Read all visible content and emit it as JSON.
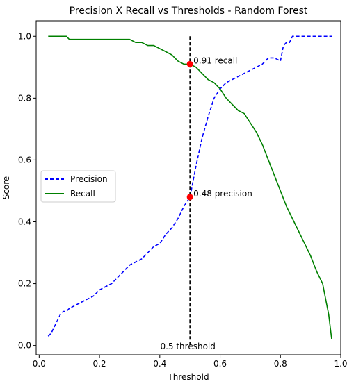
{
  "chart_data": {
    "type": "line",
    "title": "Precision X Recall vs Thresholds - Random Forest",
    "xlabel": "Threshold",
    "ylabel": "Score",
    "xlim": [
      -0.01,
      1.0
    ],
    "ylim": [
      -0.03,
      1.05
    ],
    "xticks": [
      0.0,
      0.2,
      0.4,
      0.6,
      0.8,
      1.0
    ],
    "xtick_labels": [
      "0.0",
      "0.2",
      "0.4",
      "0.6",
      "0.8",
      "1.0"
    ],
    "yticks": [
      0.0,
      0.2,
      0.4,
      0.6,
      0.8,
      1.0
    ],
    "ytick_labels": [
      "0.0",
      "0.2",
      "0.4",
      "0.6",
      "0.8",
      "1.0"
    ],
    "grid": false,
    "legend_position": "center-left",
    "series": [
      {
        "name": "Precision",
        "color": "#0000ff",
        "style": "dashed",
        "x": [
          0.03,
          0.04,
          0.05,
          0.06,
          0.07,
          0.08,
          0.09,
          0.1,
          0.12,
          0.14,
          0.16,
          0.18,
          0.2,
          0.22,
          0.24,
          0.26,
          0.28,
          0.3,
          0.32,
          0.34,
          0.36,
          0.38,
          0.4,
          0.42,
          0.44,
          0.46,
          0.48,
          0.5,
          0.52,
          0.54,
          0.56,
          0.58,
          0.6,
          0.62,
          0.64,
          0.66,
          0.68,
          0.7,
          0.72,
          0.74,
          0.76,
          0.78,
          0.8,
          0.81,
          0.82,
          0.83,
          0.84,
          0.86,
          0.88,
          0.9,
          0.92,
          0.94,
          0.96,
          0.97
        ],
        "y": [
          0.03,
          0.04,
          0.06,
          0.08,
          0.1,
          0.11,
          0.11,
          0.12,
          0.13,
          0.14,
          0.15,
          0.16,
          0.18,
          0.19,
          0.2,
          0.22,
          0.24,
          0.26,
          0.27,
          0.28,
          0.3,
          0.32,
          0.33,
          0.36,
          0.38,
          0.41,
          0.45,
          0.48,
          0.58,
          0.67,
          0.74,
          0.8,
          0.83,
          0.85,
          0.86,
          0.87,
          0.88,
          0.89,
          0.9,
          0.91,
          0.93,
          0.93,
          0.92,
          0.97,
          0.98,
          0.98,
          1.0,
          1.0,
          1.0,
          1.0,
          1.0,
          1.0,
          1.0,
          1.0
        ]
      },
      {
        "name": "Recall",
        "color": "#008000",
        "style": "solid",
        "x": [
          0.03,
          0.06,
          0.09,
          0.1,
          0.13,
          0.16,
          0.2,
          0.25,
          0.3,
          0.32,
          0.34,
          0.36,
          0.38,
          0.4,
          0.42,
          0.44,
          0.46,
          0.48,
          0.5,
          0.52,
          0.54,
          0.56,
          0.58,
          0.6,
          0.62,
          0.64,
          0.66,
          0.68,
          0.7,
          0.72,
          0.74,
          0.76,
          0.78,
          0.8,
          0.82,
          0.84,
          0.86,
          0.88,
          0.9,
          0.92,
          0.94,
          0.95,
          0.96,
          0.97
        ],
        "y": [
          1.0,
          1.0,
          1.0,
          0.99,
          0.99,
          0.99,
          0.99,
          0.99,
          0.99,
          0.98,
          0.98,
          0.97,
          0.97,
          0.96,
          0.95,
          0.94,
          0.92,
          0.91,
          0.91,
          0.9,
          0.88,
          0.86,
          0.85,
          0.83,
          0.8,
          0.78,
          0.76,
          0.75,
          0.72,
          0.69,
          0.65,
          0.6,
          0.55,
          0.5,
          0.45,
          0.41,
          0.37,
          0.33,
          0.29,
          0.24,
          0.2,
          0.15,
          0.1,
          0.02
        ]
      }
    ],
    "threshold_line": {
      "x": 0.5,
      "ymin": 0.0,
      "ymax": 1.0,
      "color": "#000000",
      "style": "dashed",
      "label": "0.5 threshold"
    },
    "annotations": [
      {
        "x": 0.5,
        "y": 0.91,
        "text": "0.91 recall",
        "color": "#ff0000"
      },
      {
        "x": 0.5,
        "y": 0.48,
        "text": "0.48 precision",
        "color": "#ff0000"
      }
    ]
  }
}
